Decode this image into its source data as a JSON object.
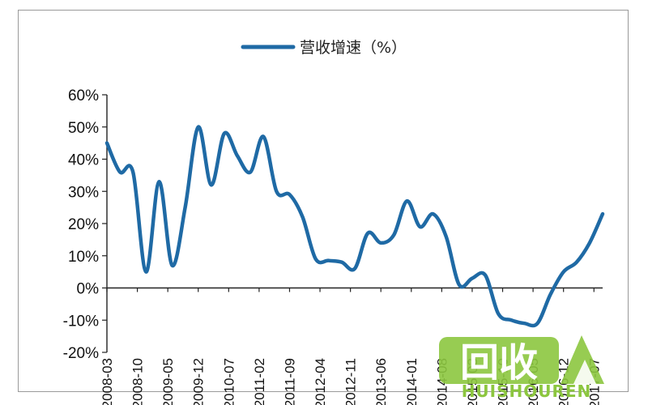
{
  "chart_data": {
    "type": "line",
    "title": "",
    "xlabel": "",
    "ylabel": "",
    "legend": {
      "position": "top",
      "entries": [
        "营收增速（%）"
      ]
    },
    "grid": false,
    "ylim": [
      -0.2,
      0.6
    ],
    "yticks": [
      {
        "value": 0.6,
        "label": "60%"
      },
      {
        "value": 0.5,
        "label": "50%"
      },
      {
        "value": 0.4,
        "label": "40%"
      },
      {
        "value": 0.3,
        "label": "30%"
      },
      {
        "value": 0.2,
        "label": "20%"
      },
      {
        "value": 0.1,
        "label": "10%"
      },
      {
        "value": 0.0,
        "label": "0%"
      },
      {
        "value": -0.1,
        "label": "-10%"
      },
      {
        "value": -0.2,
        "label": "-20%"
      }
    ],
    "xticks": [
      "2008-03",
      "2008-10",
      "2009-05",
      "2009-12",
      "2010-07",
      "2011-02",
      "2011-09",
      "2012-04",
      "2012-11",
      "2013-06",
      "2014-01",
      "2014-08",
      "2015-03",
      "2015-10",
      "2016-05",
      "2016-12",
      "2017-07"
    ],
    "series": [
      {
        "name": "营收增速（%）",
        "color": "#1f6aa5",
        "points": [
          [
            "2008-03",
            0.45
          ],
          [
            "2008-06",
            0.36
          ],
          [
            "2008-09",
            0.36
          ],
          [
            "2008-12",
            0.05
          ],
          [
            "2009-03",
            0.33
          ],
          [
            "2009-06",
            0.07
          ],
          [
            "2009-09",
            0.25
          ],
          [
            "2009-12",
            0.5
          ],
          [
            "2010-03",
            0.32
          ],
          [
            "2010-06",
            0.48
          ],
          [
            "2010-09",
            0.41
          ],
          [
            "2010-12",
            0.36
          ],
          [
            "2011-03",
            0.47
          ],
          [
            "2011-06",
            0.3
          ],
          [
            "2011-09",
            0.29
          ],
          [
            "2011-12",
            0.22
          ],
          [
            "2012-03",
            0.09
          ],
          [
            "2012-06",
            0.085
          ],
          [
            "2012-09",
            0.08
          ],
          [
            "2012-12",
            0.06
          ],
          [
            "2013-03",
            0.17
          ],
          [
            "2013-06",
            0.14
          ],
          [
            "2013-09",
            0.165
          ],
          [
            "2013-12",
            0.27
          ],
          [
            "2014-03",
            0.19
          ],
          [
            "2014-06",
            0.23
          ],
          [
            "2014-09",
            0.16
          ],
          [
            "2014-12",
            0.01
          ],
          [
            "2015-03",
            0.03
          ],
          [
            "2015-06",
            0.04
          ],
          [
            "2015-09",
            -0.08
          ],
          [
            "2015-12",
            -0.1
          ],
          [
            "2016-03",
            -0.11
          ],
          [
            "2016-06",
            -0.11
          ],
          [
            "2016-09",
            -0.02
          ],
          [
            "2016-12",
            0.05
          ],
          [
            "2017-03",
            0.08
          ],
          [
            "2017-06",
            0.14
          ],
          [
            "2017-09",
            0.23
          ]
        ]
      }
    ]
  },
  "watermark": {
    "cn": "回收",
    "en": "HUISHOUREN",
    "colors": {
      "main": "#8cc63f",
      "dark": "#111111",
      "light": "#ffffff"
    }
  }
}
